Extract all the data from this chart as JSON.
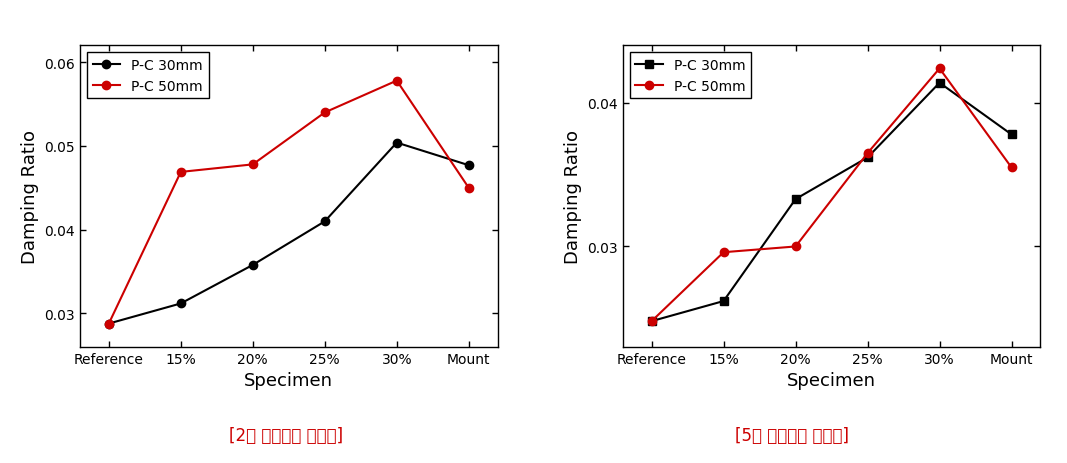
{
  "left": {
    "title": "[2번 가속도계 감쇠율]",
    "xlabel": "Specimen",
    "ylabel": "Damping Ratio",
    "categories": [
      "Reference",
      "15%",
      "20%",
      "25%",
      "30%",
      "Mount"
    ],
    "series": [
      {
        "label": "P-C 30mm",
        "color": "#000000",
        "marker": "o",
        "values": [
          0.0288,
          0.0312,
          0.0358,
          0.041,
          0.0504,
          0.0477
        ]
      },
      {
        "label": "P-C 50mm",
        "color": "#cc0000",
        "marker": "o",
        "values": [
          0.0288,
          0.0469,
          0.0478,
          0.054,
          0.0578,
          0.045
        ]
      }
    ],
    "ylim": [
      0.026,
      0.062
    ],
    "yticks": [
      0.03,
      0.04,
      0.05,
      0.06
    ]
  },
  "right": {
    "title": "[5번 가속도계 감쇠율]",
    "xlabel": "Specimen",
    "ylabel": "Damping Ratio",
    "categories": [
      "Reference",
      "15%",
      "20%",
      "25%",
      "30%",
      "Mount"
    ],
    "series": [
      {
        "label": "P-C 30mm",
        "color": "#000000",
        "marker": "s",
        "values": [
          0.0248,
          0.0262,
          0.0333,
          0.0362,
          0.0414,
          0.0378
        ]
      },
      {
        "label": "P-C 50mm",
        "color": "#cc0000",
        "marker": "o",
        "values": [
          0.0248,
          0.0296,
          0.03,
          0.0365,
          0.0424,
          0.0355
        ]
      }
    ],
    "ylim": [
      0.023,
      0.044
    ],
    "yticks": [
      0.03,
      0.04
    ]
  },
  "background_color": "#ffffff",
  "title_color": "#cc0000",
  "title_fontsize": 12,
  "axis_label_fontsize": 13,
  "tick_fontsize": 10,
  "legend_fontsize": 10,
  "line_width": 1.5,
  "marker_size": 6
}
